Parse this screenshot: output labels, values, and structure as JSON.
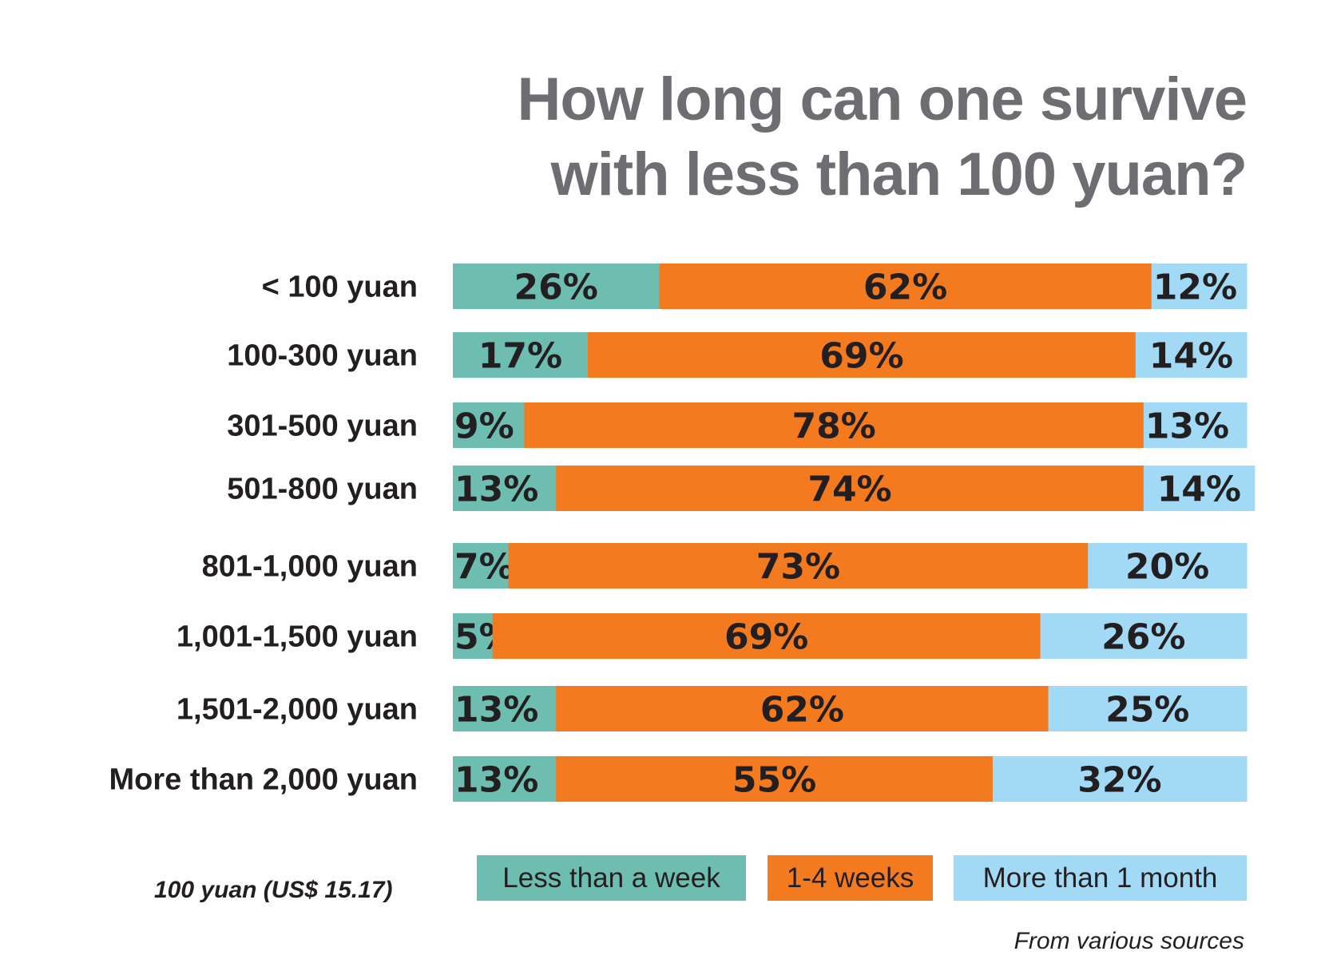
{
  "title_lines": [
    "How long can one survive",
    "with less than 100 yuan?"
  ],
  "note": "100 yuan (US$ 15.17)",
  "source": "From various sources",
  "chart_data": {
    "type": "bar",
    "orientation": "horizontal",
    "stacked": true,
    "title": "How long can one survive with less than 100 yuan?",
    "categories": [
      "< 100 yuan",
      "100-300 yuan",
      "301-500 yuan",
      "501-800 yuan",
      "801-1,000 yuan",
      "1,001-1,500 yuan",
      "1,501-2,000 yuan",
      "More than 2,000 yuan"
    ],
    "series": [
      {
        "name": "Less than a week",
        "color": "#6dbdb0",
        "values": [
          26,
          17,
          9,
          13,
          7,
          5,
          13,
          13
        ]
      },
      {
        "name": "1-4 weeks",
        "color": "#f47a20",
        "values": [
          62,
          69,
          78,
          74,
          73,
          69,
          62,
          55
        ]
      },
      {
        "name": "More than 1 month",
        "color": "#a2daf6",
        "values": [
          12,
          14,
          13,
          14,
          20,
          26,
          25,
          32
        ]
      }
    ],
    "unit": "%",
    "xlim": [
      0,
      100
    ],
    "grid": false,
    "legend": "bottom"
  }
}
